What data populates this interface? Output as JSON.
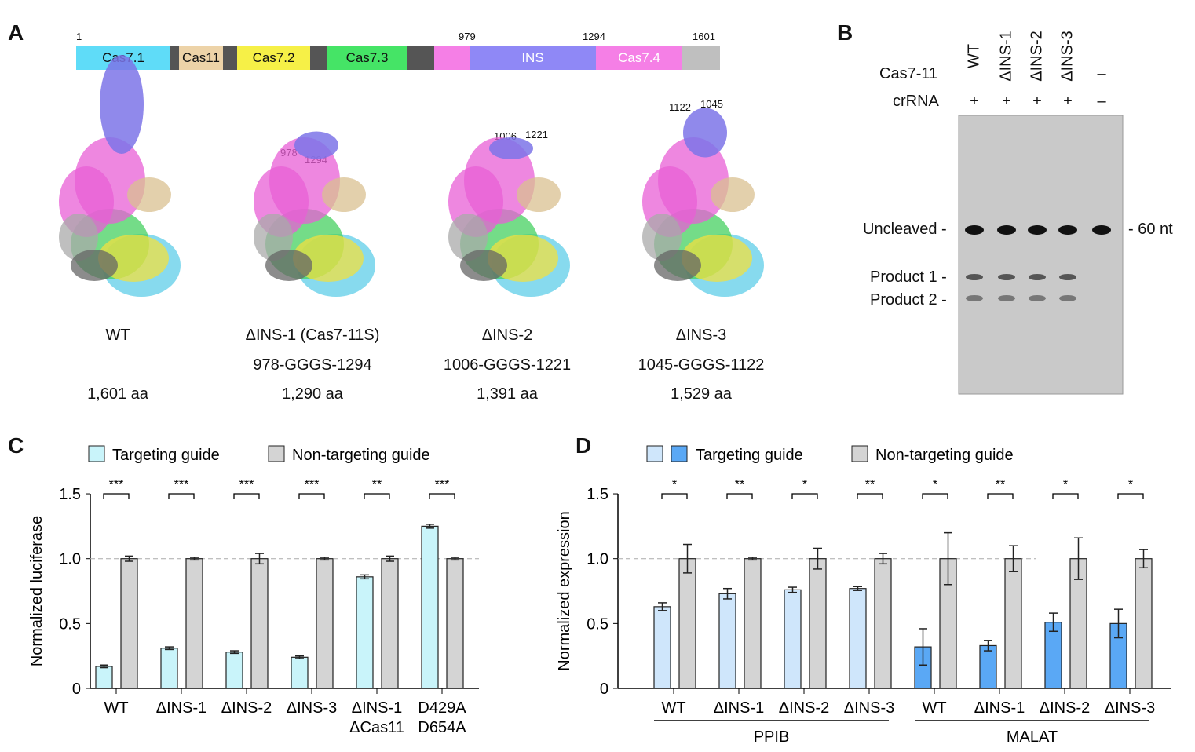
{
  "panels": {
    "a": "A",
    "b": "B",
    "c": "C",
    "d": "D"
  },
  "domain_map": {
    "positions": [
      "1",
      "979",
      "1294",
      "1601"
    ],
    "domains": [
      {
        "label": "Cas7.1",
        "color": "#5fdcf8"
      },
      {
        "label": "",
        "color": "#555555"
      },
      {
        "label": "Cas11",
        "color": "#edd3a8"
      },
      {
        "label": "",
        "color": "#555555"
      },
      {
        "label": "Cas7.2",
        "color": "#f6f047"
      },
      {
        "label": "",
        "color": "#555555"
      },
      {
        "label": "Cas7.3",
        "color": "#45e466"
      },
      {
        "label": "",
        "color": "#555555"
      },
      {
        "label": "",
        "color": "#f57fe6"
      },
      {
        "label": "INS",
        "color": "#8f88f6"
      },
      {
        "label": "Cas7.4",
        "color": "#f57fe6"
      },
      {
        "label": "",
        "color": "#bfbfbf"
      }
    ]
  },
  "structures": [
    {
      "name": "WT",
      "linker": "",
      "length": "1,601 aa",
      "marks": []
    },
    {
      "name": "ΔINS-1 (Cas7-11S)",
      "linker": "978-GGGS-1294",
      "length": "1,290 aa",
      "marks": [
        "978",
        "1294"
      ]
    },
    {
      "name": "ΔINS-2",
      "linker": "1006-GGGS-1221",
      "length": "1,391 aa",
      "marks": [
        "1006",
        "1221"
      ]
    },
    {
      "name": "ΔINS-3",
      "linker": "1045-GGGS-1122",
      "length": "1,529 aa",
      "marks": [
        "1122",
        "1045"
      ]
    }
  ],
  "gel": {
    "row_labels": [
      "Cas7-11",
      "crRNA"
    ],
    "lanes": [
      {
        "cas": "WT",
        "cr": "+"
      },
      {
        "cas": "ΔINS-1",
        "cr": "+"
      },
      {
        "cas": "ΔINS-2",
        "cr": "+"
      },
      {
        "cas": "ΔINS-3",
        "cr": "+"
      },
      {
        "cas": "–",
        "cr": "–"
      }
    ],
    "band_labels": [
      "Uncleaved -",
      "Product 1 -",
      "Product 2 -"
    ],
    "size_marker": "- 60 nt"
  },
  "chart_data": [
    {
      "type": "bar",
      "panel": "C",
      "ylabel": "Normalized luciferase",
      "ylim": [
        0,
        1.5
      ],
      "yticks": [
        "0",
        "0.5",
        "1.0",
        "1.5"
      ],
      "reference_line": 1.0,
      "categories": [
        "WT",
        "ΔINS-1",
        "ΔINS-2",
        "ΔINS-3",
        "ΔINS-1\nΔCas11",
        "D429A\nD654A"
      ],
      "legend": [
        "Targeting guide",
        "Non-targeting guide"
      ],
      "significance": [
        "***",
        "***",
        "***",
        "***",
        "**",
        "***"
      ],
      "series": [
        {
          "name": "Targeting guide",
          "color": "#c9f4fa",
          "values": [
            0.17,
            0.31,
            0.28,
            0.24,
            0.86,
            1.25
          ],
          "errors": [
            0.01,
            0.01,
            0.01,
            0.01,
            0.015,
            0.015
          ]
        },
        {
          "name": "Non-targeting guide",
          "color": "#d4d4d4",
          "values": [
            1.0,
            1.0,
            1.0,
            1.0,
            1.0,
            1.0
          ],
          "errors": [
            0.02,
            0.01,
            0.04,
            0.01,
            0.02,
            0.01
          ]
        }
      ]
    },
    {
      "type": "bar",
      "panel": "D",
      "ylabel": "Normalized expression",
      "ylim": [
        0,
        1.5
      ],
      "yticks": [
        "0",
        "0.5",
        "1.0",
        "1.5"
      ],
      "reference_line": 1.0,
      "categories": [
        "WT",
        "ΔINS-1",
        "ΔINS-2",
        "ΔINS-3",
        "WT",
        "ΔINS-1",
        "ΔINS-2",
        "ΔINS-3"
      ],
      "groups": [
        {
          "label": "PPIB",
          "count": 4
        },
        {
          "label": "MALAT",
          "count": 4
        }
      ],
      "legend": [
        "Targeting guide",
        "Non-targeting guide"
      ],
      "significance": [
        "*",
        "**",
        "*",
        "**",
        "*",
        "**",
        "*",
        "*"
      ],
      "series": [
        {
          "name": "Targeting guide",
          "colors": [
            "#cfe6fb",
            "#5aa8f5"
          ],
          "values": [
            0.63,
            0.73,
            0.76,
            0.77,
            0.32,
            0.33,
            0.51,
            0.5
          ],
          "errors": [
            0.03,
            0.04,
            0.02,
            0.015,
            0.14,
            0.04,
            0.07,
            0.11
          ]
        },
        {
          "name": "Non-targeting guide",
          "color": "#d4d4d4",
          "values": [
            1.0,
            1.0,
            1.0,
            1.0,
            1.0,
            1.0,
            1.0,
            1.0
          ],
          "errors": [
            0.11,
            0.01,
            0.08,
            0.04,
            0.2,
            0.1,
            0.16,
            0.07
          ]
        }
      ]
    }
  ]
}
